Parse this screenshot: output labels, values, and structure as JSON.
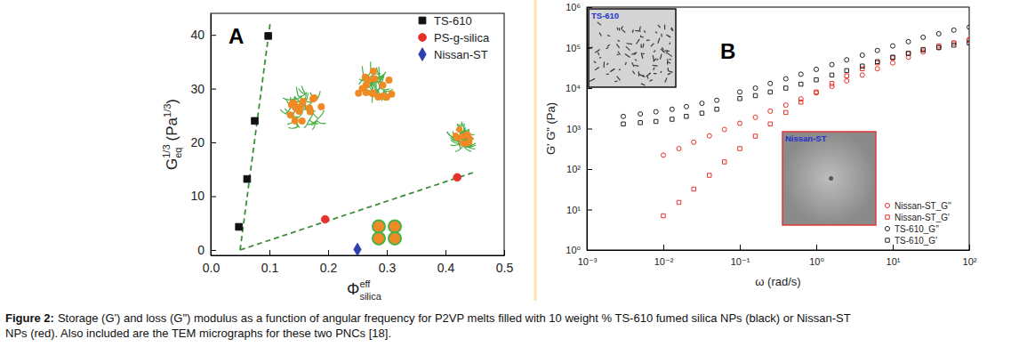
{
  "chart_data": [
    {
      "type": "scatter",
      "panel_label": "A",
      "x_label": {
        "text": "Φ",
        "superscript": "eff",
        "subscript": "silica"
      },
      "y_label": {
        "text": "G",
        "subscript": "eq",
        "superscript": "1/3",
        "unit": "(Pa",
        "unit_superscript": "1/3",
        "unit_close": ")"
      },
      "xlim": [
        0,
        0.5
      ],
      "xticks": [
        {
          "value": 0,
          "label": "0.0"
        },
        0.1,
        0.2,
        0.3,
        0.4,
        0.5
      ],
      "ylim": [
        -1,
        44
      ],
      "yticks": [
        0,
        10,
        20,
        30,
        40
      ],
      "legend": "top-right",
      "series": [
        {
          "name": "TS-610",
          "color": "#111111",
          "marker": "square",
          "x": [
            0.048,
            0.062,
            0.075,
            0.098
          ],
          "values": [
            4.3,
            13.2,
            24,
            39.8
          ]
        },
        {
          "name": "PS-g-silica",
          "color": "#e8302a",
          "marker": "circle",
          "x": [
            0.195,
            0.42
          ],
          "values": [
            5.7,
            13.5
          ]
        },
        {
          "name": "Nissan-ST",
          "color": "#2b3fb0",
          "marker": "diamond",
          "x": [
            0.25
          ],
          "values": [
            0.1
          ]
        },
        {
          "type": "line",
          "line_style": "dashed",
          "color": "#3b8f3b",
          "x": [
            0.05,
            0.101
          ],
          "values": [
            0,
            42
          ]
        },
        {
          "type": "line",
          "line_style": "dashed",
          "color": "#3b8f3b",
          "x": [
            0.05,
            0.45
          ],
          "values": [
            0,
            14.5
          ]
        }
      ]
    },
    {
      "type": "scatter",
      "panel_label": "B",
      "log": true,
      "x_label": "ω (rad/s)",
      "y_label": "G' G\" (Pa)",
      "xlim": [
        0.001,
        100
      ],
      "xticks": [
        {
          "value": 0.001,
          "label": "10⁻³"
        },
        {
          "value": 0.01,
          "label": "10⁻²"
        },
        {
          "value": 0.1,
          "label": "10⁻¹"
        },
        {
          "value": 1,
          "label": "10⁰"
        },
        {
          "value": 10,
          "label": "10¹"
        },
        {
          "value": 100,
          "label": "10²"
        }
      ],
      "ylim": [
        1,
        1000000
      ],
      "yticks": [
        {
          "value": 1,
          "label": "10⁰"
        },
        {
          "value": 10,
          "label": "10¹"
        },
        {
          "value": 100,
          "label": "10²"
        },
        {
          "value": 1000,
          "label": "10³"
        },
        {
          "value": 10000,
          "label": "10⁴"
        },
        {
          "value": 100000,
          "label": "10⁵"
        },
        {
          "value": 1000000,
          "label": "10⁶"
        }
      ],
      "legend": "bottom-right",
      "insets": [
        {
          "label": "TS-610",
          "color": "#111111"
        },
        {
          "label": "Nissan-ST",
          "color": "#e03a3a"
        }
      ],
      "series": [
        {
          "name": "Nissan-ST_G''",
          "color": "#e8302a",
          "marker": "open_circle",
          "x": [
            0.01,
            0.016,
            0.025,
            0.04,
            0.063,
            0.1,
            0.16,
            0.25,
            0.4,
            0.63,
            1,
            1.6,
            2.5,
            4,
            6.3,
            10,
            16,
            25,
            40,
            63,
            100
          ],
          "values": [
            220,
            320,
            460,
            660,
            950,
            1350,
            1900,
            2700,
            3800,
            5400,
            7600,
            11000,
            15000,
            21000,
            30000,
            42000,
            58000,
            78000,
            100000,
            130000,
            160000
          ]
        },
        {
          "name": "Nissan-ST_G'",
          "color": "#e8302a",
          "marker": "open_square",
          "x": [
            0.01,
            0.016,
            0.025,
            0.04,
            0.063,
            0.1,
            0.16,
            0.25,
            0.4,
            0.63,
            1,
            1.6,
            2.5,
            4,
            6.3,
            10,
            16,
            25,
            40,
            63,
            100
          ],
          "values": [
            7,
            15,
            32,
            70,
            150,
            320,
            650,
            1300,
            2500,
            4500,
            8000,
            13000,
            20000,
            30000,
            42000,
            56000,
            72000,
            90000,
            110000,
            130000,
            150000
          ]
        },
        {
          "name": "TS-610_G''",
          "color": "#222222",
          "marker": "open_circle",
          "x": [
            0.003,
            0.005,
            0.008,
            0.013,
            0.02,
            0.032,
            0.05,
            0.1,
            0.16,
            0.25,
            0.4,
            0.63,
            1,
            1.6,
            2.5,
            4,
            6.3,
            10,
            16,
            25,
            40,
            63,
            100
          ],
          "values": [
            2000,
            2300,
            2600,
            3000,
            3500,
            4200,
            5000,
            8000,
            10000,
            13000,
            17000,
            22000,
            29000,
            38000,
            50000,
            65000,
            85000,
            110000,
            140000,
            180000,
            220000,
            270000,
            320000
          ]
        },
        {
          "name": "TS-610_G'",
          "color": "#222222",
          "marker": "open_square",
          "x": [
            0.003,
            0.005,
            0.008,
            0.013,
            0.02,
            0.032,
            0.05,
            0.1,
            0.16,
            0.25,
            0.4,
            0.63,
            1,
            1.6,
            2.5,
            4,
            6.3,
            10,
            16,
            25,
            40,
            63,
            100
          ],
          "values": [
            1300,
            1400,
            1500,
            1700,
            2000,
            2400,
            3000,
            5500,
            6500,
            8000,
            10000,
            12500,
            16000,
            21000,
            27000,
            35000,
            45000,
            58000,
            72000,
            88000,
            100000,
            115000,
            130000
          ]
        }
      ]
    }
  ],
  "caption": {
    "label": "Figure 2:",
    "lines": [
      "Storage (G') and loss (G\") modulus as a function of angular frequency for P2VP melts filled with 10 weight % TS-610 fumed silica NPs (black) or Nissan-ST",
      "NPs (red). Also included are the TEM micrographs for these two PNCs [18]."
    ]
  }
}
